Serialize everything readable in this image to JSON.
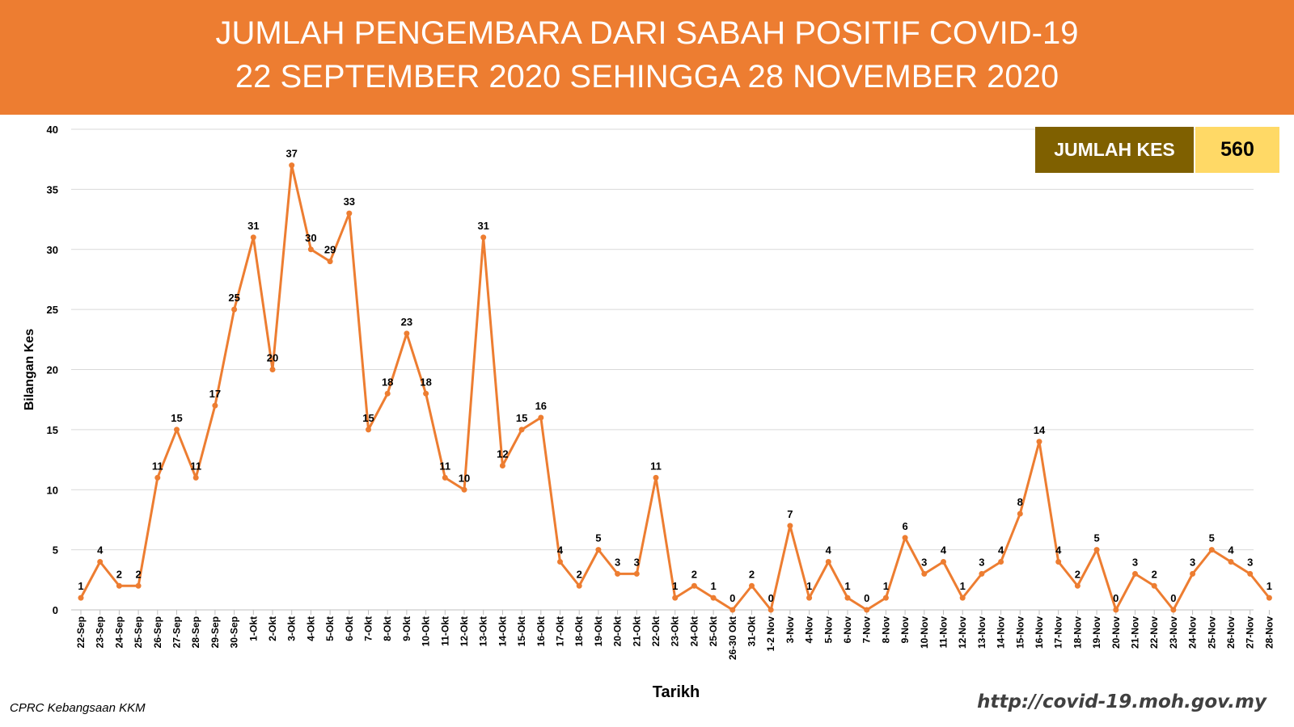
{
  "header": {
    "title_line1": "JUMLAH PENGEMBARA DARI SABAH POSITIF COVID-19",
    "title_line2": "22 SEPTEMBER 2020 SEHINGGA 28 NOVEMBER 2020"
  },
  "total": {
    "label": "JUMLAH KES",
    "value": "560"
  },
  "footer": {
    "source": "CPRC Kebangsaan KKM",
    "url": "http://covid-19.moh.gov.my"
  },
  "colors": {
    "header_bg": "#ED7D31",
    "line": "#ED7D31",
    "total_label_bg": "#7F6000",
    "total_value_bg": "#FFD966"
  },
  "chart_data": {
    "type": "line",
    "xlabel": "Tarikh",
    "ylabel": "Bilangan Kes",
    "ylim": [
      0,
      40
    ],
    "yticks": [
      0,
      5,
      10,
      15,
      20,
      25,
      30,
      35,
      40
    ],
    "grid": true,
    "data_labels": true,
    "categories": [
      "22-Sep",
      "23-Sep",
      "24-Sep",
      "25-Sep",
      "26-Sep",
      "27-Sep",
      "28-Sep",
      "29-Sep",
      "30-Sep",
      "1-Okt",
      "2-Okt",
      "3-Okt",
      "4-Okt",
      "5-Okt",
      "6-Okt",
      "7-Okt",
      "8-Okt",
      "9-Okt",
      "10-Okt",
      "11-Okt",
      "12-Okt",
      "13-Okt",
      "14-Okt",
      "15-Okt",
      "16-Okt",
      "17-Okt",
      "18-Okt",
      "19-Okt",
      "20-Okt",
      "21-Okt",
      "22-Okt",
      "23-Okt",
      "24-Okt",
      "25-Okt",
      "26-30 Okt",
      "31-Okt",
      "1-2 Nov",
      "3-Nov",
      "4-Nov",
      "5-Nov",
      "6-Nov",
      "7-Nov",
      "8-Nov",
      "9-Nov",
      "10-Nov",
      "11-Nov",
      "12-Nov",
      "13-Nov",
      "14-Nov",
      "15-Nov",
      "16-Nov",
      "17-Nov",
      "18-Nov",
      "19-Nov",
      "20-Nov",
      "21-Nov",
      "22-Nov",
      "23-Nov",
      "24-Nov",
      "25-Nov",
      "26-Nov",
      "27-Nov",
      "28-Nov"
    ],
    "values": [
      1,
      4,
      2,
      2,
      11,
      15,
      11,
      17,
      25,
      31,
      20,
      37,
      30,
      29,
      33,
      15,
      18,
      23,
      18,
      11,
      10,
      31,
      12,
      15,
      16,
      4,
      2,
      5,
      3,
      3,
      11,
      1,
      2,
      1,
      0,
      2,
      0,
      7,
      1,
      4,
      1,
      0,
      1,
      6,
      3,
      4,
      1,
      3,
      4,
      8,
      14,
      4,
      2,
      5,
      0,
      3,
      2,
      0,
      3,
      5,
      4,
      3,
      1
    ]
  }
}
